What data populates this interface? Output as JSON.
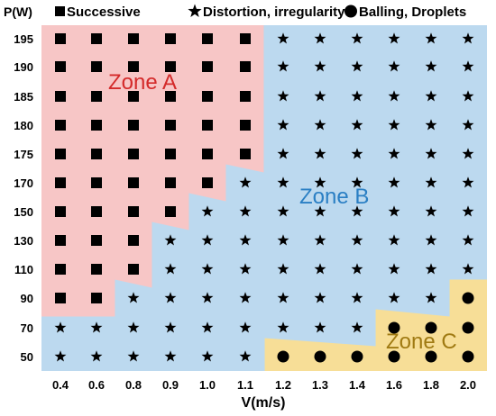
{
  "chart_data": {
    "type": "scatter",
    "title": "",
    "ylabel": "P(W)",
    "xlabel": "V(m/s)",
    "x_categories": [
      "0.4",
      "0.6",
      "0.8",
      "0.9",
      "1.0",
      "1.1",
      "1.2",
      "1.3",
      "1.4",
      "1.6",
      "1.8",
      "2.0"
    ],
    "y_categories": [
      "50",
      "70",
      "90",
      "110",
      "130",
      "150",
      "170",
      "175",
      "180",
      "185",
      "190",
      "195"
    ],
    "legend": [
      {
        "marker": "square",
        "label": "Successive"
      },
      {
        "marker": "star",
        "label": "Distortion, irregularity"
      },
      {
        "marker": "circle",
        "label": "Balling, Droplets"
      }
    ],
    "zones": [
      {
        "name": "Zone A",
        "color": "#f7c6c6",
        "label_color": "#d42a2a"
      },
      {
        "name": "Zone B",
        "color": "#bcd9ef",
        "label_color": "#2a7fc4"
      },
      {
        "name": "Zone C",
        "color": "#f7de97",
        "label_color": "#a07a12"
      }
    ],
    "grid": false,
    "legend_position": "top",
    "point_rule": "Square for all points in Zone A, star for all points in Zone B, circle for all points in Zone C",
    "zone_a_max_x_by_y": {
      "90": "0.6",
      "110": "0.8",
      "130": "0.8",
      "150": "0.9",
      "170": "1.0",
      "175": "1.1",
      "180": "1.1",
      "185": "1.1",
      "190": "1.1",
      "195": "1.1"
    },
    "zone_c_min_x_by_y": {
      "50": "1.2",
      "70": "1.6",
      "90": "2.0"
    }
  }
}
